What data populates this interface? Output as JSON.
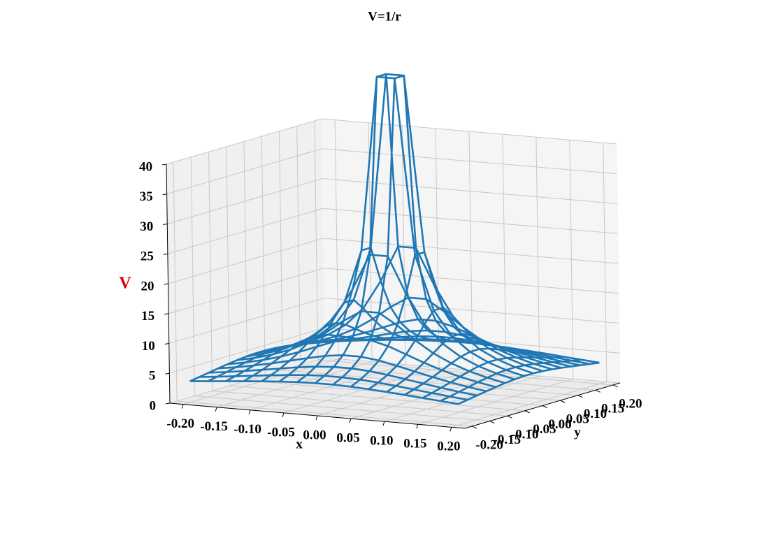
{
  "chart_data": {
    "type": "wireframe",
    "title": "V=1/r",
    "xlabel": "x",
    "ylabel": "y",
    "zlabel": "V",
    "zlabel_color": "#e00000",
    "color": "#1f77b4",
    "grid": true,
    "x": [
      -0.2,
      -0.1733,
      -0.1467,
      -0.12,
      -0.0933,
      -0.0667,
      -0.04,
      -0.0133,
      0.0133,
      0.04,
      0.0667,
      0.0933,
      0.12,
      0.1467,
      0.1733,
      0.2
    ],
    "y": [
      -0.2,
      -0.1733,
      -0.1467,
      -0.12,
      -0.0933,
      -0.0667,
      -0.04,
      -0.0133,
      0.0133,
      0.04,
      0.0667,
      0.0933,
      0.12,
      0.1467,
      0.1733,
      0.2
    ],
    "z": [
      [
        3.54,
        3.78,
        4.03,
        4.29,
        4.53,
        4.74,
        4.9,
        4.99,
        4.99,
        4.9,
        4.74,
        4.53,
        4.29,
        4.03,
        3.78,
        3.54
      ],
      [
        3.78,
        4.08,
        4.4,
        4.74,
        5.08,
        5.38,
        5.62,
        5.75,
        5.75,
        5.62,
        5.38,
        5.08,
        4.74,
        4.4,
        4.08,
        3.78
      ],
      [
        4.03,
        4.4,
        4.82,
        5.28,
        5.75,
        6.21,
        6.58,
        6.79,
        6.79,
        6.58,
        6.21,
        5.75,
        5.28,
        4.82,
        4.4,
        4.03
      ],
      [
        4.29,
        4.74,
        5.28,
        5.89,
        6.58,
        7.28,
        7.91,
        8.28,
        8.28,
        7.91,
        7.28,
        6.58,
        5.89,
        5.28,
        4.74,
        4.29
      ],
      [
        4.53,
        5.08,
        5.75,
        6.58,
        7.58,
        8.72,
        9.85,
        10.61,
        10.61,
        9.85,
        8.72,
        7.58,
        6.58,
        5.75,
        5.08,
        4.53
      ],
      [
        4.74,
        5.38,
        6.21,
        7.28,
        8.72,
        10.61,
        12.86,
        14.71,
        14.71,
        12.86,
        10.61,
        8.72,
        7.28,
        6.21,
        5.38,
        4.74
      ],
      [
        4.9,
        5.62,
        6.58,
        7.91,
        9.85,
        12.86,
        17.68,
        23.72,
        23.72,
        17.68,
        12.86,
        9.85,
        7.91,
        6.58,
        5.62,
        4.9
      ],
      [
        4.99,
        5.75,
        6.79,
        8.28,
        10.61,
        14.71,
        23.72,
        53.03,
        53.03,
        23.72,
        14.71,
        10.61,
        8.28,
        6.79,
        5.75,
        4.99
      ],
      [
        4.99,
        5.75,
        6.79,
        8.28,
        10.61,
        14.71,
        23.72,
        53.03,
        53.03,
        23.72,
        14.71,
        10.61,
        8.28,
        6.79,
        5.75,
        4.99
      ],
      [
        4.9,
        5.62,
        6.58,
        7.91,
        9.85,
        12.86,
        17.68,
        23.72,
        23.72,
        17.68,
        12.86,
        9.85,
        7.91,
        6.58,
        5.62,
        4.9
      ],
      [
        4.74,
        5.38,
        6.21,
        7.28,
        8.72,
        10.61,
        12.86,
        14.71,
        14.71,
        12.86,
        10.61,
        8.72,
        7.28,
        6.21,
        5.38,
        4.74
      ],
      [
        4.53,
        5.08,
        5.75,
        6.58,
        7.58,
        8.72,
        9.85,
        10.61,
        10.61,
        9.85,
        8.72,
        7.58,
        6.58,
        5.75,
        5.08,
        4.53
      ],
      [
        4.29,
        4.74,
        5.28,
        5.89,
        6.58,
        7.28,
        7.91,
        8.28,
        8.28,
        7.91,
        7.28,
        6.58,
        5.89,
        5.28,
        4.74,
        4.29
      ],
      [
        4.03,
        4.4,
        4.82,
        5.28,
        5.75,
        6.21,
        6.58,
        6.79,
        6.79,
        6.58,
        6.21,
        5.75,
        5.28,
        4.82,
        4.4,
        4.03
      ],
      [
        3.78,
        4.08,
        4.4,
        4.74,
        5.08,
        5.38,
        5.62,
        5.75,
        5.75,
        5.62,
        5.38,
        5.08,
        4.74,
        4.4,
        4.08,
        3.78
      ],
      [
        3.54,
        3.78,
        4.03,
        4.29,
        4.53,
        4.74,
        4.9,
        4.99,
        4.99,
        4.9,
        4.74,
        4.53,
        4.29,
        4.03,
        3.78,
        3.54
      ]
    ],
    "xlim": [
      -0.22,
      0.22
    ],
    "ylim": [
      -0.22,
      0.22
    ],
    "zlim": [
      0,
      40
    ],
    "xticks": [
      {
        "value": -0.2,
        "label": "-0.20"
      },
      {
        "value": -0.15,
        "label": "-0.15"
      },
      {
        "value": -0.1,
        "label": "-0.10"
      },
      {
        "value": -0.05,
        "label": "-0.05"
      },
      {
        "value": 0,
        "label": "0.00"
      },
      {
        "value": 0.05,
        "label": "0.05"
      },
      {
        "value": 0.1,
        "label": "0.10"
      },
      {
        "value": 0.15,
        "label": "0.15"
      },
      {
        "value": 0.2,
        "label": "0.20"
      }
    ],
    "yticks": [
      {
        "value": -0.2,
        "label": "-0.20"
      },
      {
        "value": -0.15,
        "label": "-0.15"
      },
      {
        "value": -0.1,
        "label": "-0.10"
      },
      {
        "value": -0.05,
        "label": "-0.05"
      },
      {
        "value": 0,
        "label": "0.00"
      },
      {
        "value": 0.05,
        "label": "0.05"
      },
      {
        "value": 0.1,
        "label": "0.10"
      },
      {
        "value": 0.15,
        "label": "0.15"
      },
      {
        "value": 0.2,
        "label": "0.20"
      }
    ],
    "zticks": [
      0,
      5,
      10,
      15,
      20,
      25,
      30,
      35,
      40
    ]
  }
}
